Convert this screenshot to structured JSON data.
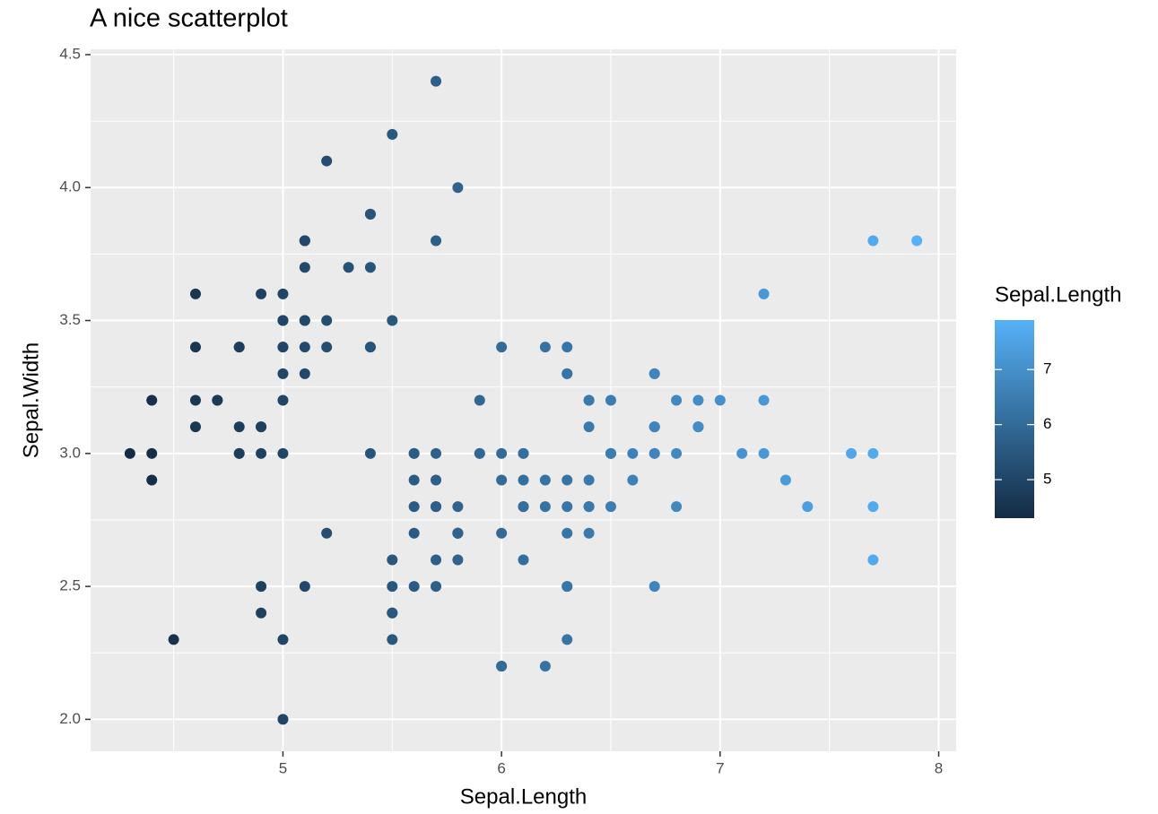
{
  "chart_data": {
    "type": "scatter",
    "title": "A nice scatterplot",
    "x_label": "Sepal.Length",
    "y_label": "Sepal.Width",
    "xlim": [
      4.12,
      8.08
    ],
    "ylim": [
      1.88,
      4.52
    ],
    "xticks": [
      5,
      6,
      7,
      8
    ],
    "yticks": [
      {
        "value": 2,
        "label": "2.0"
      },
      2.5,
      {
        "value": 3,
        "label": "3.0"
      },
      3.5,
      {
        "value": 4,
        "label": "4.0"
      },
      4.5
    ],
    "grid": true,
    "color_scale": {
      "title": "Sepal.Length",
      "low": "#132B43",
      "high": "#56B1F7",
      "lim": [
        4.3,
        7.9
      ],
      "ticks": [
        5,
        6,
        7
      ]
    },
    "x": [
      5.1,
      4.9,
      4.7,
      4.6,
      5.0,
      5.4,
      4.6,
      5.0,
      4.4,
      4.9,
      5.4,
      4.8,
      4.8,
      4.3,
      5.8,
      5.7,
      5.4,
      5.1,
      5.7,
      5.1,
      5.4,
      5.1,
      4.6,
      5.1,
      4.8,
      5.0,
      5.0,
      5.2,
      5.2,
      4.7,
      4.8,
      5.4,
      5.2,
      5.5,
      4.9,
      5.0,
      5.5,
      4.9,
      4.4,
      5.1,
      5.0,
      4.5,
      4.4,
      5.0,
      5.1,
      4.8,
      5.1,
      4.6,
      5.3,
      5.0,
      7.0,
      6.4,
      6.9,
      5.5,
      6.5,
      5.7,
      6.3,
      4.9,
      6.6,
      5.2,
      5.0,
      5.9,
      6.0,
      6.1,
      5.6,
      6.7,
      5.6,
      5.8,
      6.2,
      5.6,
      5.9,
      6.1,
      6.3,
      6.1,
      6.4,
      6.6,
      6.8,
      6.7,
      6.0,
      5.7,
      5.5,
      5.5,
      5.8,
      6.0,
      5.4,
      6.0,
      6.7,
      6.3,
      5.6,
      5.5,
      5.5,
      6.1,
      5.8,
      5.0,
      5.6,
      5.7,
      5.7,
      6.2,
      5.1,
      5.7,
      6.3,
      5.8,
      7.1,
      6.3,
      6.5,
      7.6,
      4.9,
      7.3,
      6.7,
      7.2,
      6.5,
      6.4,
      6.8,
      5.7,
      5.8,
      6.4,
      6.5,
      7.7,
      7.7,
      6.0,
      6.9,
      5.6,
      7.7,
      6.3,
      6.7,
      7.2,
      6.2,
      6.1,
      6.4,
      7.2,
      7.4,
      7.9,
      6.4,
      6.3,
      6.1,
      7.7,
      6.3,
      6.4,
      6.0,
      6.9,
      6.7,
      6.9,
      5.8,
      6.8,
      6.7,
      6.7,
      6.3,
      6.5,
      6.2,
      5.9
    ],
    "values": [
      3.5,
      3.0,
      3.2,
      3.1,
      3.6,
      3.9,
      3.4,
      3.4,
      2.9,
      3.1,
      3.7,
      3.4,
      3.0,
      3.0,
      4.0,
      4.4,
      3.9,
      3.5,
      3.8,
      3.8,
      3.4,
      3.7,
      3.6,
      3.3,
      3.4,
      3.0,
      3.4,
      3.5,
      3.4,
      3.2,
      3.1,
      3.4,
      4.1,
      4.2,
      3.1,
      3.2,
      3.5,
      3.6,
      3.0,
      3.4,
      3.5,
      2.3,
      3.2,
      3.5,
      3.8,
      3.0,
      3.8,
      3.2,
      3.7,
      3.3,
      3.2,
      3.2,
      3.1,
      2.3,
      2.8,
      2.8,
      3.3,
      2.4,
      2.9,
      2.7,
      2.0,
      3.0,
      2.2,
      2.9,
      2.9,
      3.1,
      3.0,
      2.7,
      2.2,
      2.5,
      3.2,
      2.8,
      2.5,
      2.8,
      2.9,
      3.0,
      2.8,
      3.0,
      2.9,
      2.6,
      2.4,
      2.4,
      2.7,
      2.7,
      3.0,
      3.4,
      3.1,
      2.3,
      3.0,
      2.5,
      2.6,
      3.0,
      2.6,
      2.3,
      2.7,
      3.0,
      2.9,
      2.9,
      2.5,
      2.8,
      3.3,
      2.7,
      3.0,
      2.9,
      3.0,
      3.0,
      2.5,
      2.9,
      2.5,
      3.6,
      3.2,
      2.7,
      3.0,
      2.5,
      2.8,
      3.2,
      3.0,
      3.8,
      2.6,
      2.2,
      3.2,
      2.8,
      2.8,
      2.7,
      3.3,
      3.2,
      2.8,
      3.0,
      2.8,
      3.0,
      2.8,
      3.8,
      2.8,
      2.8,
      2.6,
      3.0,
      3.4,
      3.1,
      3.0,
      3.1,
      3.1,
      3.1,
      2.7,
      3.2,
      3.3,
      3.0,
      2.5,
      3.0,
      3.4,
      3.0
    ]
  }
}
